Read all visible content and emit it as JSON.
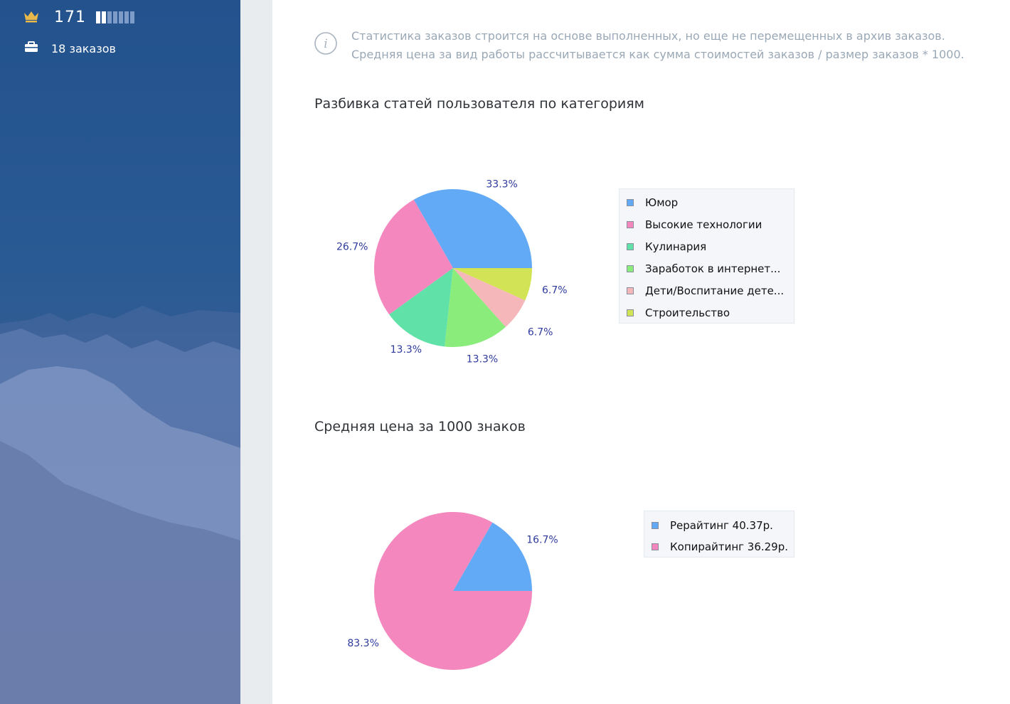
{
  "sidebar": {
    "rank_value": "171",
    "rank_level": 2,
    "rank_max": 7,
    "orders_label": "18 заказов",
    "icons": [
      "crown-icon",
      "briefcase-icon"
    ]
  },
  "info": {
    "icon": "info-icon",
    "line1": "Статистика заказов строится на основе выполненных, но еще не перемещенных в архив заказов.",
    "line2": "Средняя цена за вид работы рассчитывается как сумма стоимостей заказов / размер заказов * 1000."
  },
  "sections": {
    "categories_title": "Разбивка статей пользователя по категориям",
    "price_title": "Средняя цена за 1000 знаков"
  },
  "chart_data": [
    {
      "type": "pie",
      "title": "Разбивка статей пользователя по категориям",
      "legend_position": "right",
      "slices": [
        {
          "label": "Юмор",
          "value": 33.3,
          "pct_label": "33.3%",
          "color": "#62aaf5"
        },
        {
          "label": "Высокие технологии",
          "value": 26.7,
          "pct_label": "26.7%",
          "color": "#f487bd"
        },
        {
          "label": "Кулинария",
          "value": 13.3,
          "pct_label": "13.3%",
          "color": "#5fe1a7"
        },
        {
          "label": "Заработок в интернет...",
          "value": 13.3,
          "pct_label": "13.3%",
          "color": "#89ec7b"
        },
        {
          "label": "Дети/Воспитание дете...",
          "value": 6.7,
          "pct_label": "6.7%",
          "color": "#f6b7ba"
        },
        {
          "label": "Строительство",
          "value": 6.7,
          "pct_label": "6.7%",
          "color": "#d3e356"
        }
      ]
    },
    {
      "type": "pie",
      "title": "Средняя цена за 1000 знаков",
      "legend_position": "right",
      "slices": [
        {
          "label": "Рерайтинг 40.37р.",
          "value": 16.7,
          "pct_label": "16.7%",
          "color": "#62aaf5"
        },
        {
          "label": "Копирайтинг 36.29р.",
          "value": 83.3,
          "pct_label": "83.3%",
          "color": "#f487bd"
        }
      ]
    }
  ]
}
